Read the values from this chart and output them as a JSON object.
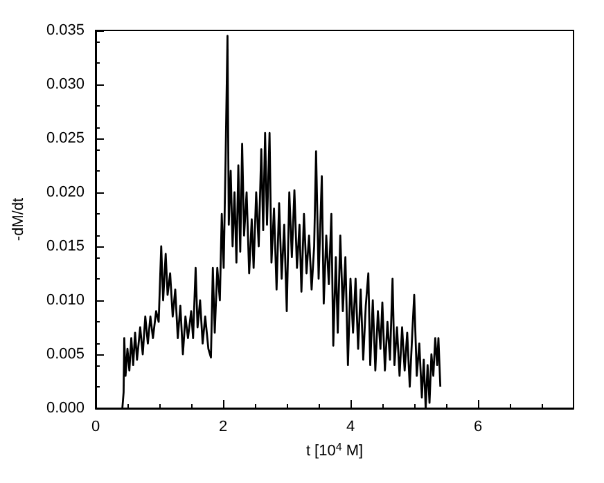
{
  "chart_data": {
    "type": "line",
    "xlabel": "t [10$^{4}$ M]",
    "ylabel": "-dM/dt",
    "xlim": [
      0,
      7.5
    ],
    "xticks": [
      0,
      2,
      4,
      6
    ],
    "ylim": [
      0,
      0.035
    ],
    "yticks": [
      {
        "value": 0,
        "label": "0.000"
      },
      {
        "value": 0.005,
        "label": "0.005"
      },
      {
        "value": 0.01,
        "label": "0.010"
      },
      {
        "value": 0.015,
        "label": "0.015"
      },
      {
        "value": 0.02,
        "label": "0.020"
      },
      {
        "value": 0.025,
        "label": "0.025"
      },
      {
        "value": 0.03,
        "label": "0.030"
      },
      {
        "value": 0.035,
        "label": "0.035"
      }
    ],
    "grid": false,
    "marker": "none",
    "line_style": "solid",
    "series": [
      {
        "color": "#000000",
        "x": [
          0.42,
          0.44,
          0.45,
          0.47,
          0.5,
          0.53,
          0.56,
          0.59,
          0.62,
          0.65,
          0.7,
          0.74,
          0.78,
          0.82,
          0.86,
          0.9,
          0.95,
          0.99,
          1.03,
          1.06,
          1.1,
          1.13,
          1.17,
          1.21,
          1.25,
          1.29,
          1.33,
          1.37,
          1.41,
          1.45,
          1.5,
          1.53,
          1.57,
          1.6,
          1.64,
          1.68,
          1.72,
          1.77,
          1.81,
          1.84,
          1.87,
          1.91,
          1.95,
          1.98,
          2.01,
          2.04,
          2.07,
          2.09,
          2.12,
          2.15,
          2.18,
          2.21,
          2.24,
          2.27,
          2.3,
          2.33,
          2.37,
          2.41,
          2.45,
          2.48,
          2.52,
          2.56,
          2.6,
          2.63,
          2.66,
          2.69,
          2.73,
          2.76,
          2.8,
          2.84,
          2.88,
          2.92,
          2.96,
          3.0,
          3.04,
          3.08,
          3.12,
          3.16,
          3.2,
          3.23,
          3.27,
          3.31,
          3.35,
          3.39,
          3.43,
          3.46,
          3.5,
          3.55,
          3.58,
          3.62,
          3.66,
          3.7,
          3.73,
          3.77,
          3.8,
          3.84,
          3.88,
          3.92,
          3.96,
          4.0,
          4.04,
          4.08,
          4.12,
          4.16,
          4.2,
          4.24,
          4.28,
          4.31,
          4.35,
          4.39,
          4.43,
          4.47,
          4.5,
          4.54,
          4.58,
          4.62,
          4.66,
          4.69,
          4.73,
          4.77,
          4.81,
          4.85,
          4.89,
          4.93,
          4.97,
          5.0,
          5.04,
          5.08,
          5.12,
          5.15,
          5.18,
          5.21,
          5.24,
          5.27,
          5.3,
          5.33,
          5.36,
          5.38,
          5.41
        ],
        "values": [
          0.0,
          0.0015,
          0.0065,
          0.003,
          0.0055,
          0.0035,
          0.0065,
          0.004,
          0.007,
          0.0045,
          0.0075,
          0.005,
          0.0085,
          0.006,
          0.0085,
          0.0065,
          0.009,
          0.008,
          0.015,
          0.01,
          0.0143,
          0.0105,
          0.0125,
          0.0085,
          0.011,
          0.0065,
          0.0095,
          0.005,
          0.0085,
          0.0065,
          0.009,
          0.0065,
          0.013,
          0.0075,
          0.01,
          0.006,
          0.0085,
          0.0055,
          0.0047,
          0.013,
          0.007,
          0.013,
          0.01,
          0.018,
          0.013,
          0.023,
          0.0345,
          0.017,
          0.022,
          0.015,
          0.02,
          0.0135,
          0.0225,
          0.0145,
          0.0245,
          0.016,
          0.02,
          0.0125,
          0.0175,
          0.013,
          0.02,
          0.015,
          0.024,
          0.0165,
          0.0255,
          0.017,
          0.0255,
          0.0135,
          0.0185,
          0.011,
          0.019,
          0.012,
          0.017,
          0.009,
          0.02,
          0.014,
          0.0202,
          0.013,
          0.017,
          0.0108,
          0.018,
          0.0125,
          0.016,
          0.011,
          0.015,
          0.0238,
          0.012,
          0.0215,
          0.0097,
          0.016,
          0.0115,
          0.018,
          0.0058,
          0.014,
          0.007,
          0.016,
          0.009,
          0.014,
          0.004,
          0.012,
          0.007,
          0.012,
          0.0055,
          0.011,
          0.0045,
          0.0095,
          0.0125,
          0.004,
          0.01,
          0.0035,
          0.009,
          0.0055,
          0.0098,
          0.0035,
          0.008,
          0.0045,
          0.012,
          0.004,
          0.0075,
          0.003,
          0.0075,
          0.0035,
          0.007,
          0.002,
          0.007,
          0.0105,
          0.003,
          0.006,
          0.001,
          0.0045,
          0.0,
          0.004,
          0.0005,
          0.005,
          0.003,
          0.0065,
          0.004,
          0.0065,
          0.002
        ]
      }
    ]
  }
}
